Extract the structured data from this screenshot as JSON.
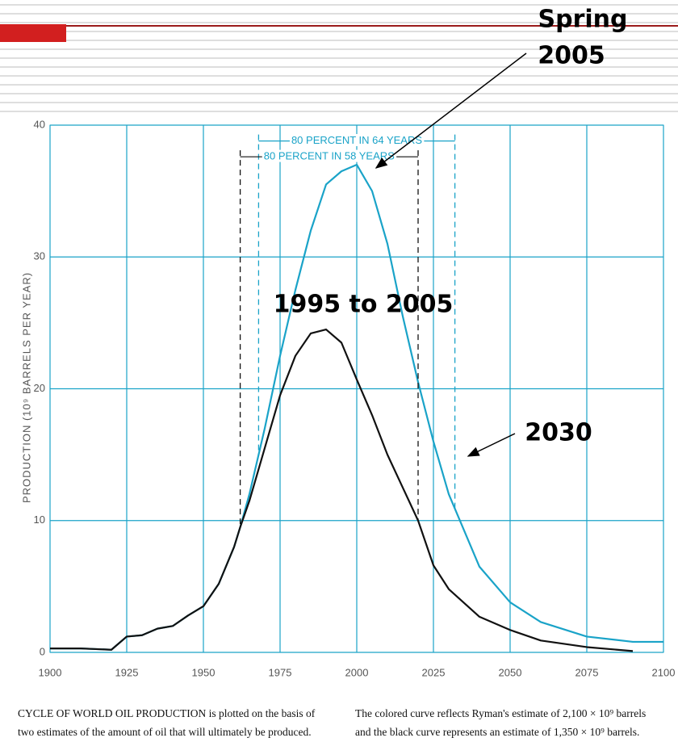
{
  "chart_data": {
    "type": "line",
    "ylabel": "PRODUCTION (10⁹ BARRELS PER YEAR)",
    "x": [
      1900,
      1910,
      1920,
      1925,
      1930,
      1935,
      1940,
      1945,
      1950,
      1955,
      1960,
      1962,
      1965,
      1970,
      1975,
      1980,
      1985,
      1990,
      1995,
      2000,
      2005,
      2010,
      2015,
      2020,
      2025,
      2030,
      2040,
      2050,
      2060,
      2075,
      2090,
      2100
    ],
    "series": [
      {
        "name": "Ryman's estimate",
        "color": "#1aa3c8",
        "values": [
          0.3,
          0.3,
          0.2,
          1.2,
          1.3,
          1.8,
          2.0,
          2.8,
          3.5,
          5.2,
          8.0,
          9.5,
          12,
          17,
          22.5,
          27.5,
          32,
          35.5,
          36.5,
          37,
          35,
          31,
          25.5,
          20.5,
          16,
          12,
          6.5,
          3.8,
          2.3,
          1.2,
          0.8,
          0.8
        ]
      },
      {
        "name": "1,350 estimate",
        "color": "#111111",
        "values": [
          0.3,
          0.3,
          0.2,
          1.2,
          1.3,
          1.8,
          2.0,
          2.8,
          3.5,
          5.2,
          8.0,
          9.5,
          11.5,
          15.5,
          19.5,
          22.5,
          24.2,
          24.5,
          23.5,
          20.7,
          18,
          15,
          12.5,
          10,
          6.6,
          4.8,
          2.7,
          1.7,
          0.9,
          0.4,
          0.1,
          null
        ]
      }
    ],
    "xlim": [
      1900,
      2100
    ],
    "xticks": [
      1900,
      1925,
      1950,
      1975,
      2000,
      2025,
      2050,
      2075,
      2100
    ],
    "ylim": [
      0,
      40
    ],
    "yticks": [
      0,
      10,
      20,
      30,
      40
    ],
    "grid": true,
    "annotations": [
      {
        "text": "80 PERCENT IN 64 YEARS",
        "x": [
          1968,
          2032
        ],
        "y": 38.8,
        "series": 0
      },
      {
        "text": "80 PERCENT IN 58 YEARS",
        "x": [
          1962,
          2020
        ],
        "y": 37.6,
        "series": 1
      }
    ],
    "callouts": [
      "Spring",
      "2005",
      "1995 to 2005",
      "2030"
    ],
    "caption": {
      "left": [
        "CYCLE OF WORLD OIL PRODUCTION is plotted on the basis of",
        "two estimates of the amount of oil that will ultimately be produced."
      ],
      "right": [
        "The colored curve reflects Ryman's estimate of 2,100 × 10⁹ barrels",
        "and the black curve represents an estimate of 1,350 × 10⁹ barrels."
      ]
    }
  }
}
